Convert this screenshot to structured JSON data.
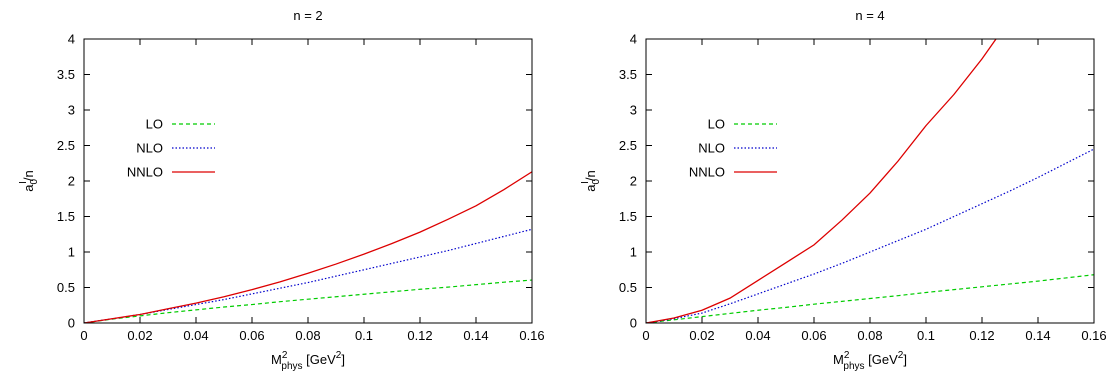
{
  "chart_data": [
    {
      "type": "line",
      "title": "n = 2",
      "xlabel": {
        "main": "M",
        "sup": "2",
        "sub": "phys",
        "unit": "[GeV",
        "unit_sup": "2",
        "unit_close": "]"
      },
      "ylabel": {
        "main": "a",
        "sub": "0",
        "sup": "I",
        "tail": "/n"
      },
      "xlim": [
        0,
        0.16
      ],
      "ylim": [
        0,
        4
      ],
      "xticks": [
        "0",
        "0.02",
        "0.04",
        "0.06",
        "0.08",
        "0.1",
        "0.12",
        "0.14",
        "0.16"
      ],
      "yticks": [
        "0",
        "0.5",
        "1",
        "1.5",
        "2",
        "2.5",
        "3",
        "3.5",
        "4"
      ],
      "grid": false,
      "legend_position": "left, upper-middle",
      "series": [
        {
          "name": "LO",
          "color": "#00cc00",
          "style": "dashed",
          "x": [
            0,
            0.01,
            0.02,
            0.03,
            0.04,
            0.05,
            0.06,
            0.07,
            0.08,
            0.09,
            0.1,
            0.11,
            0.12,
            0.13,
            0.14,
            0.15,
            0.16
          ],
          "y": [
            0,
            0.055,
            0.1,
            0.145,
            0.185,
            0.225,
            0.26,
            0.3,
            0.335,
            0.37,
            0.405,
            0.44,
            0.475,
            0.505,
            0.54,
            0.575,
            0.605
          ]
        },
        {
          "name": "NLO",
          "color": "#0000cc",
          "style": "dotted",
          "x": [
            0,
            0.01,
            0.02,
            0.03,
            0.04,
            0.05,
            0.06,
            0.07,
            0.08,
            0.09,
            0.1,
            0.11,
            0.12,
            0.13,
            0.14,
            0.15,
            0.16
          ],
          "y": [
            0,
            0.06,
            0.12,
            0.19,
            0.26,
            0.33,
            0.41,
            0.49,
            0.57,
            0.66,
            0.75,
            0.84,
            0.93,
            1.02,
            1.12,
            1.22,
            1.32
          ]
        },
        {
          "name": "NNLO",
          "color": "#dd0000",
          "style": "solid",
          "x": [
            0,
            0.01,
            0.02,
            0.03,
            0.04,
            0.05,
            0.06,
            0.07,
            0.08,
            0.09,
            0.1,
            0.11,
            0.12,
            0.13,
            0.14,
            0.15,
            0.16
          ],
          "y": [
            0,
            0.06,
            0.12,
            0.2,
            0.28,
            0.37,
            0.47,
            0.58,
            0.7,
            0.83,
            0.97,
            1.12,
            1.28,
            1.46,
            1.65,
            1.88,
            2.13
          ]
        }
      ]
    },
    {
      "type": "line",
      "title": "n = 4",
      "xlabel": {
        "main": "M",
        "sup": "2",
        "sub": "phys",
        "unit": "[GeV",
        "unit_sup": "2",
        "unit_close": "]"
      },
      "ylabel": {
        "main": "a",
        "sub": "0",
        "sup": "I",
        "tail": "/n"
      },
      "xlim": [
        0,
        0.16
      ],
      "ylim": [
        0,
        4
      ],
      "xticks": [
        "0",
        "0.02",
        "0.04",
        "0.06",
        "0.08",
        "0.1",
        "0.12",
        "0.14",
        "0.16"
      ],
      "yticks": [
        "0",
        "0.5",
        "1",
        "1.5",
        "2",
        "2.5",
        "3",
        "3.5",
        "4"
      ],
      "grid": false,
      "legend_position": "left, upper-middle",
      "series": [
        {
          "name": "LO",
          "color": "#00cc00",
          "style": "dashed",
          "x": [
            0,
            0.01,
            0.02,
            0.03,
            0.04,
            0.05,
            0.06,
            0.07,
            0.08,
            0.09,
            0.1,
            0.11,
            0.12,
            0.13,
            0.14,
            0.15,
            0.16
          ],
          "y": [
            0,
            0.045,
            0.09,
            0.135,
            0.18,
            0.22,
            0.265,
            0.305,
            0.345,
            0.385,
            0.43,
            0.47,
            0.51,
            0.55,
            0.59,
            0.635,
            0.68
          ]
        },
        {
          "name": "NLO",
          "color": "#0000cc",
          "style": "dotted",
          "x": [
            0,
            0.01,
            0.02,
            0.03,
            0.04,
            0.05,
            0.06,
            0.07,
            0.08,
            0.09,
            0.1,
            0.11,
            0.12,
            0.13,
            0.14,
            0.15,
            0.16
          ],
          "y": [
            0,
            0.06,
            0.14,
            0.27,
            0.41,
            0.55,
            0.69,
            0.84,
            1.0,
            1.16,
            1.32,
            1.5,
            1.68,
            1.86,
            2.05,
            2.25,
            2.45
          ]
        },
        {
          "name": "NNLO",
          "color": "#dd0000",
          "style": "solid",
          "x": [
            0,
            0.01,
            0.02,
            0.03,
            0.04,
            0.05,
            0.06,
            0.07,
            0.08,
            0.09,
            0.1,
            0.11,
            0.12,
            0.125
          ],
          "y": [
            0,
            0.07,
            0.18,
            0.35,
            0.6,
            0.85,
            1.1,
            1.45,
            1.83,
            2.28,
            2.78,
            3.22,
            3.72,
            4.0
          ]
        }
      ]
    }
  ]
}
